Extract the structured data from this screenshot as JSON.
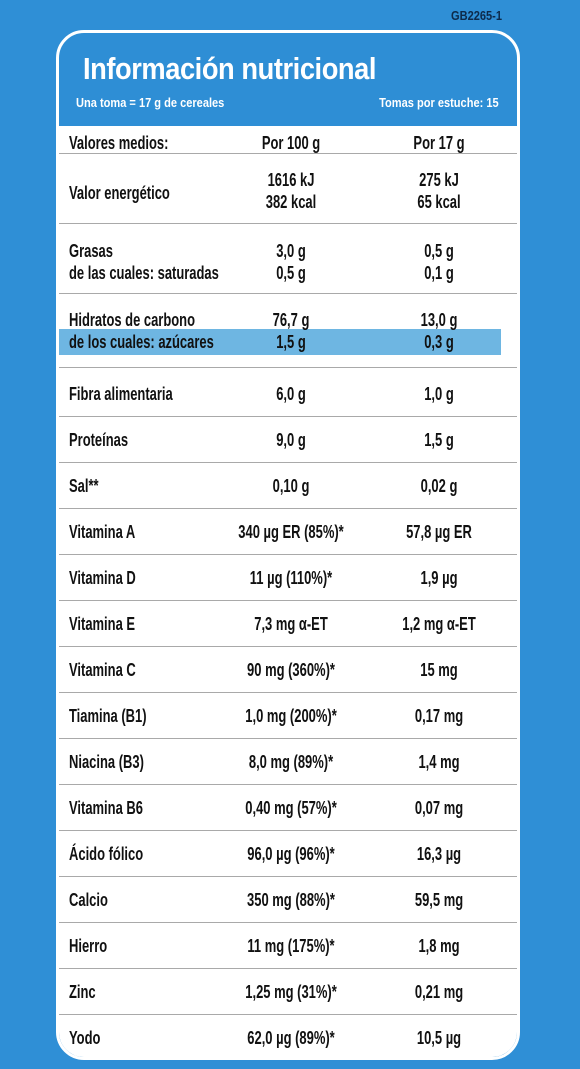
{
  "code": "GB2265-1",
  "header": {
    "title": "Información nutricional",
    "serving": "Una toma = 17 g de cereales",
    "servings_per_pack": "Tomas por estuche: 15"
  },
  "columns": {
    "c0": "Valores medios:",
    "c1": "Por 100 g",
    "c2": "Por 17 g"
  },
  "rows": [
    {
      "lines": [
        [
          "Valor energético",
          "1616 kJ",
          "275 kJ"
        ],
        [
          "",
          "382 kcal",
          "65 kcal"
        ]
      ]
    },
    {
      "lines": [
        [
          "Grasas",
          "3,0 g",
          "0,5 g"
        ],
        [
          "de las cuales: saturadas",
          "0,5 g",
          "0,1 g"
        ]
      ]
    },
    {
      "lines": [
        [
          "Hidratos de carbono",
          "76,7 g",
          "13,0 g"
        ],
        [
          "de los cuales: azúcares",
          "1,5 g",
          "0,3 g"
        ]
      ]
    },
    {
      "lines": [
        [
          "Fibra alimentaria",
          "6,0 g",
          "1,0 g"
        ]
      ]
    },
    {
      "lines": [
        [
          "Proteínas",
          "9,0 g",
          "1,5 g"
        ]
      ]
    },
    {
      "lines": [
        [
          "Sal**",
          "0,10 g",
          "0,02 g"
        ]
      ]
    },
    {
      "lines": [
        [
          "Vitamina A",
          "340 µg ER (85%)*",
          "57,8 µg ER"
        ]
      ]
    },
    {
      "lines": [
        [
          "Vitamina D",
          "11 µg (110%)*",
          "1,9 µg"
        ]
      ]
    },
    {
      "lines": [
        [
          "Vitamina E",
          "7,3 mg  α-ET",
          "1,2 mg  α-ET"
        ]
      ]
    },
    {
      "lines": [
        [
          "Vitamina C",
          "90 mg (360%)*",
          "15 mg"
        ]
      ]
    },
    {
      "lines": [
        [
          "Tiamina (B1)",
          "1,0 mg (200%)*",
          "0,17 mg"
        ]
      ]
    },
    {
      "lines": [
        [
          "Niacina (B3)",
          "8,0 mg (89%)*",
          "1,4 mg"
        ]
      ]
    },
    {
      "lines": [
        [
          "Vitamina B6",
          "0,40 mg (57%)*",
          "0,07 mg"
        ]
      ]
    },
    {
      "lines": [
        [
          "Ácido fólico",
          "96,0 µg (96%)*",
          "16,3 µg"
        ]
      ]
    },
    {
      "lines": [
        [
          "Calcio",
          "350 mg (88%)*",
          "59,5 mg"
        ]
      ]
    },
    {
      "lines": [
        [
          "Hierro",
          "11 mg (175%)*",
          "1,8 mg"
        ]
      ]
    },
    {
      "lines": [
        [
          "Zinc",
          "1,25 mg (31%)*",
          "0,21 mg"
        ]
      ]
    },
    {
      "lines": [
        [
          "Yodo",
          "62,0 µg (89%)*",
          "10,5 µg"
        ]
      ]
    }
  ],
  "colors": {
    "background": "#2f8fd6",
    "highlight": "#6eb6e2",
    "table": "#ffffff"
  }
}
